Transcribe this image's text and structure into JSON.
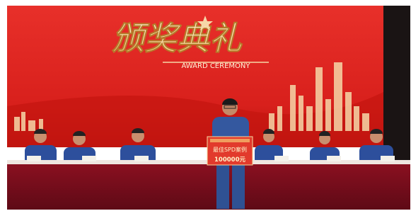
{
  "screen": {
    "title": "颁奖典礼",
    "subtitle": "AWARD CEREMONY"
  },
  "board": {
    "label": "最佳SPD案例",
    "amount": "100000元"
  }
}
